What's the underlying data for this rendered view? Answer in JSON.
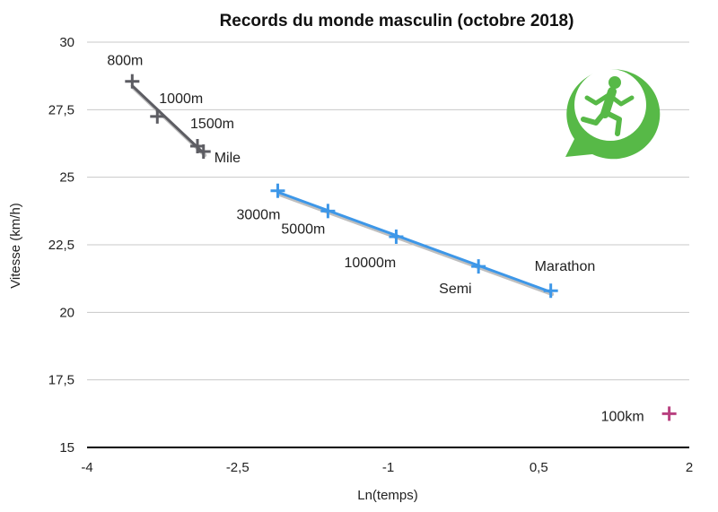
{
  "chart_data": {
    "type": "scatter",
    "title": "Records du monde masculin (octobre 2018)",
    "xlabel": "Ln(temps)",
    "ylabel": "Vitesse (km/h)",
    "xlim": [
      -4,
      2
    ],
    "ylim": [
      15,
      30
    ],
    "x_ticks": [
      -4,
      -2.5,
      -1,
      0.5,
      2
    ],
    "x_tick_labels": [
      "-4",
      "-2,5",
      "-1",
      "0,5",
      "2"
    ],
    "y_ticks": [
      15,
      17.5,
      20,
      22.5,
      25,
      27.5,
      30
    ],
    "y_tick_labels": [
      "15",
      "17,5",
      "20",
      "22,5",
      "25",
      "27,5",
      "30"
    ],
    "grid": "horizontal",
    "series": [
      {
        "color": "#5d5d63",
        "trendline": true,
        "points": [
          {
            "label": "800m",
            "x": -3.55,
            "y": 28.55
          },
          {
            "label": "1000m",
            "x": -3.3,
            "y": 27.25
          },
          {
            "label": "1500m",
            "x": -2.9,
            "y": 26.15
          },
          {
            "label": "Mile",
            "x": -2.84,
            "y": 25.95
          }
        ]
      },
      {
        "color": "#3d97e8",
        "trendline": true,
        "points": [
          {
            "label": "3000m",
            "x": -2.1,
            "y": 24.5
          },
          {
            "label": "5000m",
            "x": -1.6,
            "y": 23.75
          },
          {
            "label": "10000m",
            "x": -0.92,
            "y": 22.8
          },
          {
            "label": "Semi",
            "x": -0.1,
            "y": 21.7
          },
          {
            "label": "Marathon",
            "x": 0.62,
            "y": 20.8
          }
        ]
      },
      {
        "color": "#b8407f",
        "trendline": false,
        "points": [
          {
            "label": "100km",
            "x": 1.8,
            "y": 16.25
          }
        ]
      }
    ]
  },
  "logo": {
    "icon": "running-man-chat-icon",
    "color": "#57b947"
  }
}
